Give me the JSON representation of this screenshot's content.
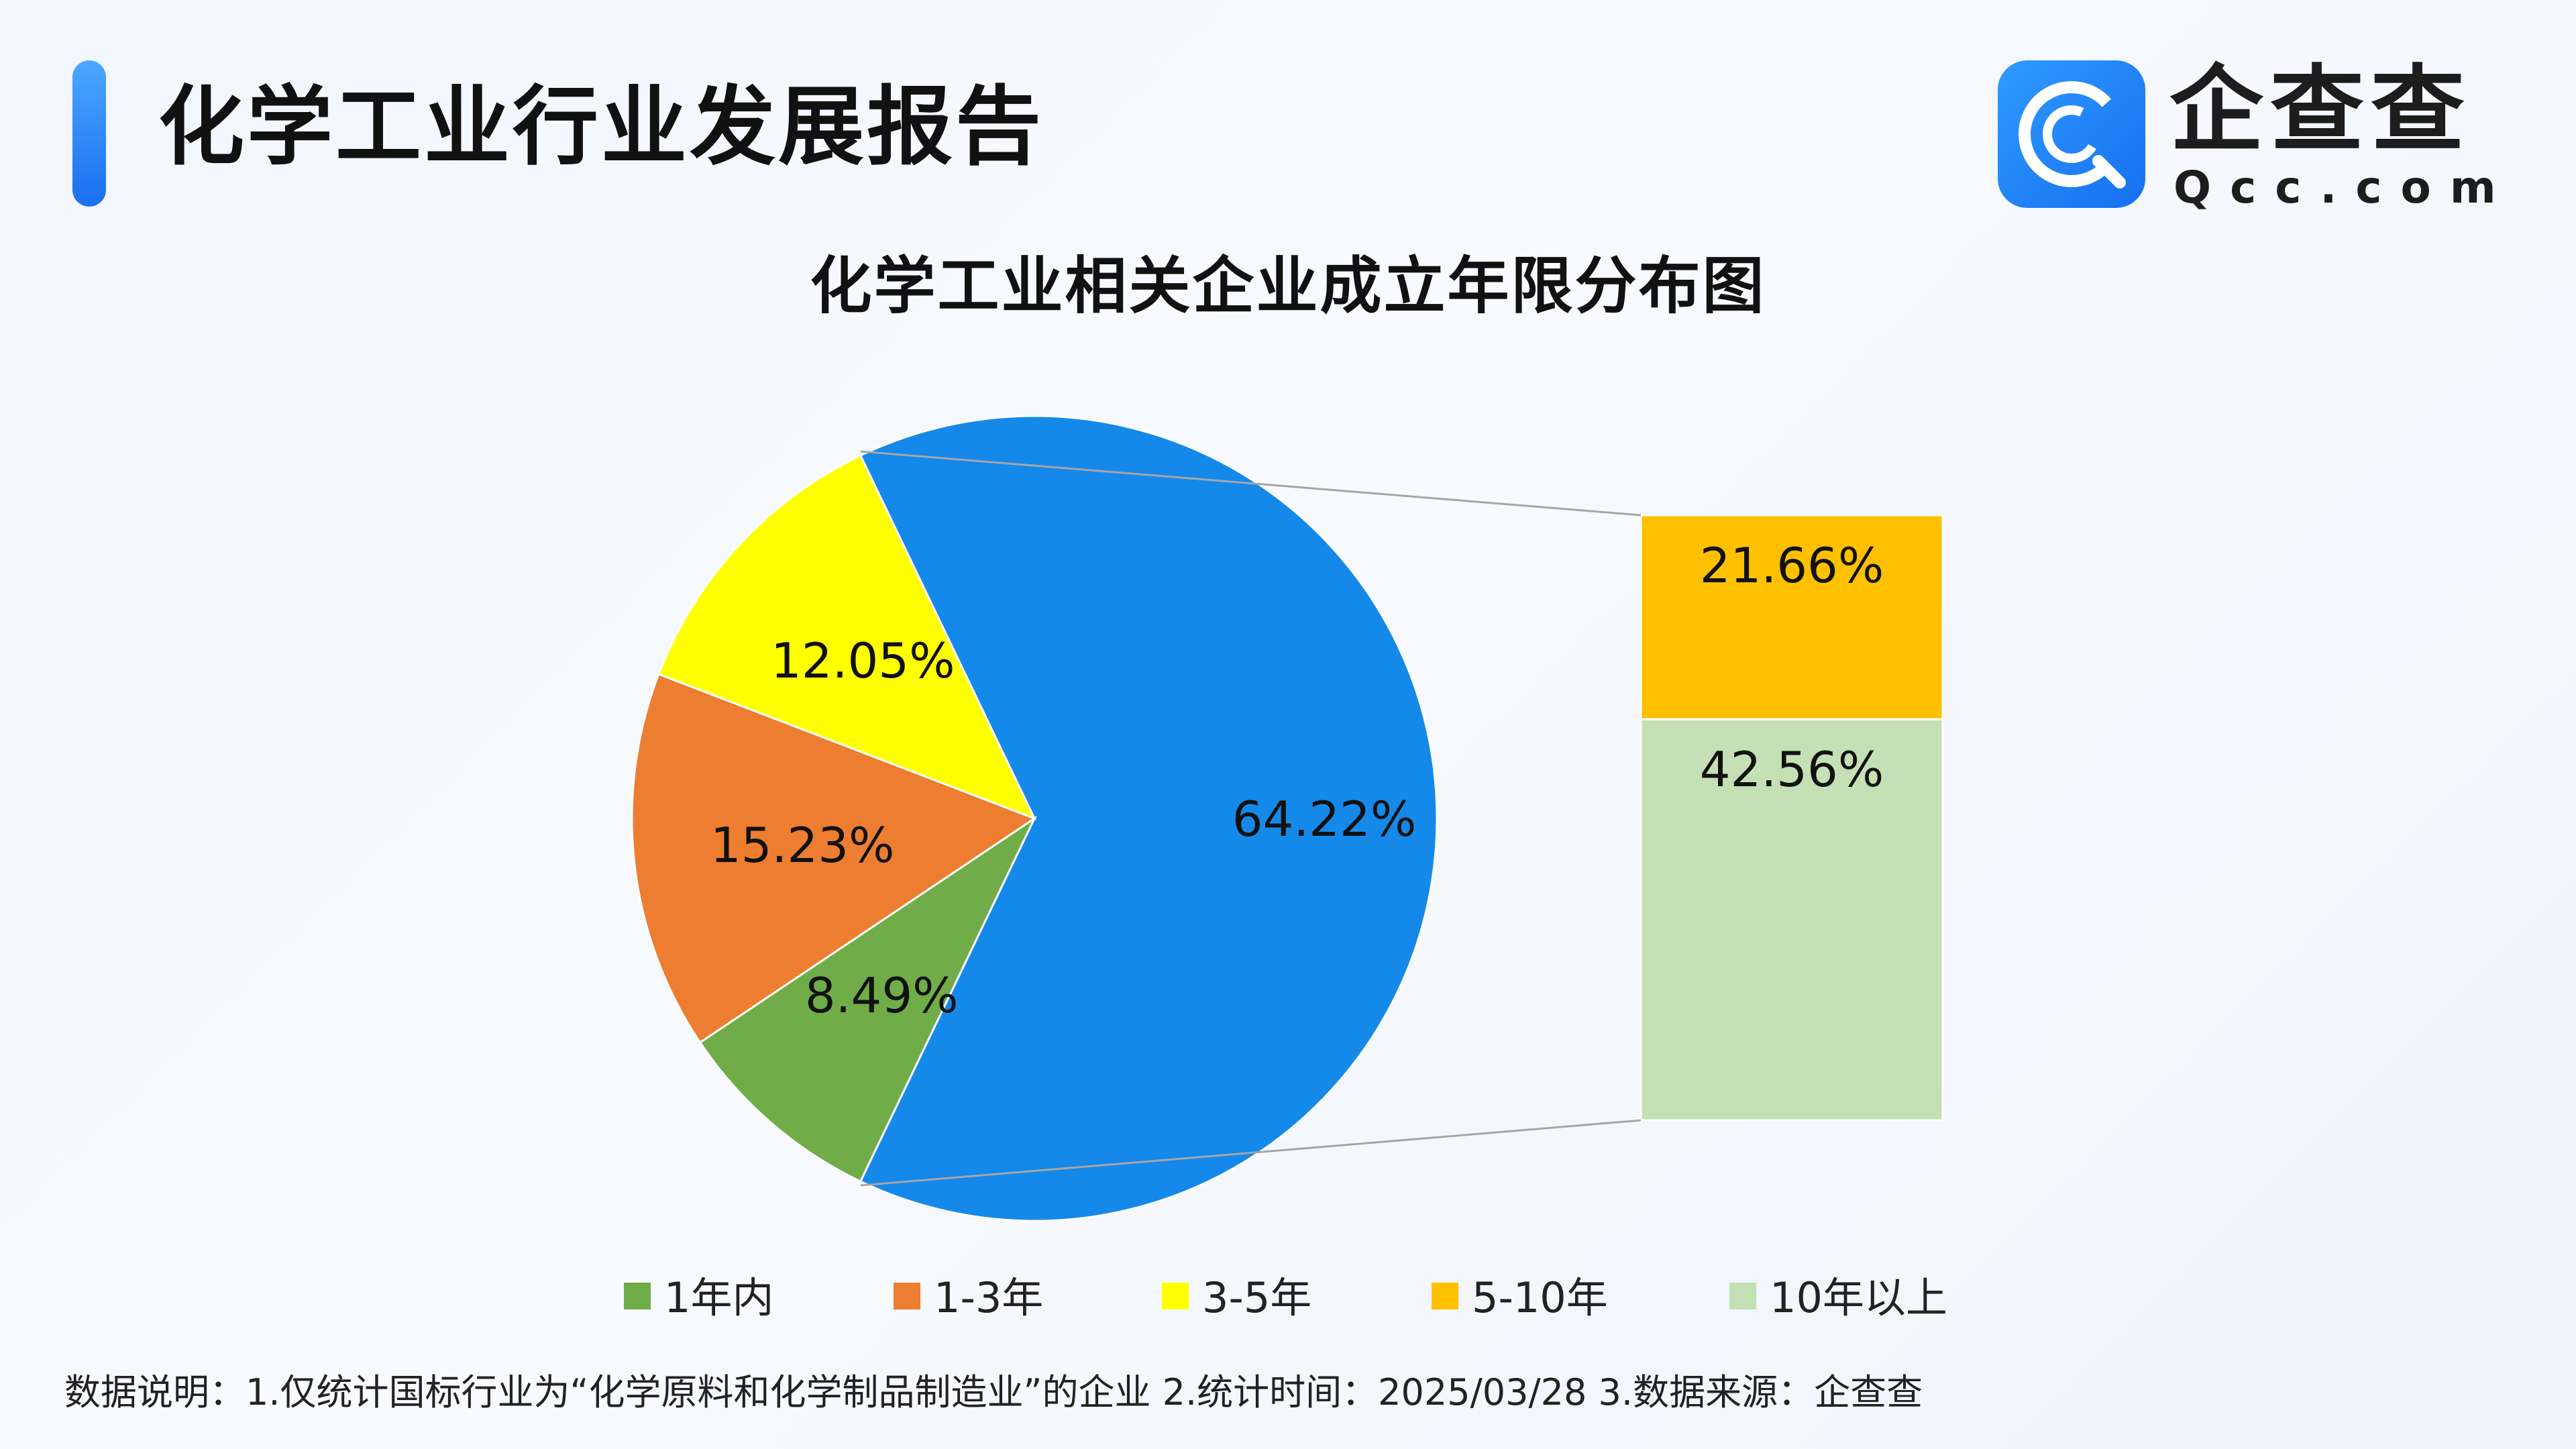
{
  "header": {
    "title": "化学工业行业发展报告",
    "logo_text": "企查查",
    "logo_sub": "Qcc.com"
  },
  "chart_data": {
    "type": "pie",
    "title": "化学工业相关企业成立年限分布图",
    "slices": [
      {
        "label": "10年以上",
        "value": 64.22,
        "display": "64.22%",
        "color": "#1589e9"
      },
      {
        "label": "1年内",
        "value": 8.49,
        "display": "8.49%",
        "color": "#70ac47"
      },
      {
        "label": "1-3年",
        "value": 15.23,
        "display": "15.23%",
        "color": "#ed7d31"
      },
      {
        "label": "3-5年",
        "value": 12.05,
        "display": "12.05%",
        "color": "#ffff00"
      }
    ],
    "breakout_bar": [
      {
        "label": "5-10年",
        "value": 21.66,
        "display": "21.66%",
        "color": "#ffc000"
      },
      {
        "label": "10年以上",
        "value": 42.56,
        "display": "42.56%",
        "color": "#c5e0b4"
      }
    ],
    "legend": [
      {
        "label": "1年内",
        "color": "#70ac47"
      },
      {
        "label": "1-3年",
        "color": "#ed7d31"
      },
      {
        "label": "3-5年",
        "color": "#ffff00"
      },
      {
        "label": "5-10年",
        "color": "#ffc000"
      },
      {
        "label": "10年以上",
        "color": "#c5e0b4"
      }
    ],
    "legend_position": "bottom"
  },
  "footer": {
    "note": "数据说明：1.仅统计国标行业为“化学原料和化学制品制造业”的企业   2.统计时间：2025/03/28    3.数据来源：企查查"
  }
}
